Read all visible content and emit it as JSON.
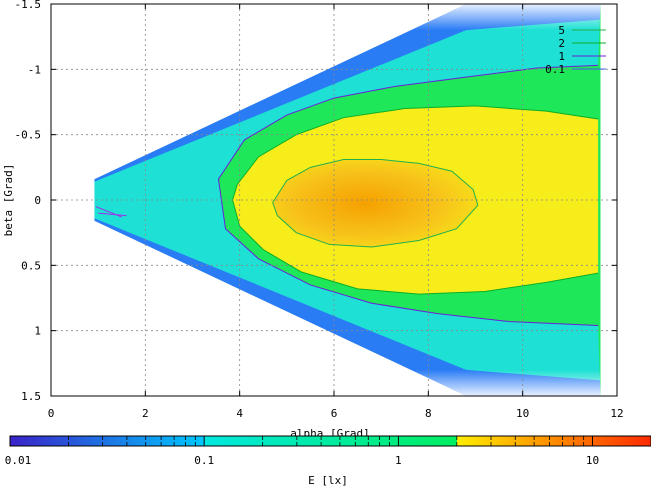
{
  "chart_data": {
    "type": "heatmap",
    "xlabel": "alpha [Grad]",
    "ylabel": "beta [Grad]",
    "xlim": [
      0,
      12
    ],
    "ylim": [
      -1.5,
      1.5
    ],
    "y_axis_inverted": true,
    "x_ticks": [
      0,
      2,
      4,
      6,
      8,
      10,
      12
    ],
    "y_ticks": [
      -1.5,
      -1,
      -0.5,
      0,
      0.5,
      1,
      1.5
    ],
    "x_tick_labels": [
      "0",
      "2",
      "4",
      "6",
      "8",
      "10",
      "12"
    ],
    "y_tick_labels": [
      "-1.5",
      "-1",
      "-0.5",
      "0",
      "0.5",
      "1",
      "1.5"
    ],
    "grid": true,
    "legend_position": "top-right",
    "colorbar": {
      "label": "E [lx]",
      "scale": "log",
      "range": [
        0.01,
        20
      ],
      "tick_values": [
        0.01,
        0.1,
        1,
        10
      ],
      "tick_labels": [
        "0.01",
        "0.1",
        "1",
        "10"
      ],
      "bands": [
        {
          "from": 0.01,
          "to": 0.1,
          "color": "#3a22c8",
          "to_color": "#00c8ff"
        },
        {
          "from": 0.1,
          "to": 2,
          "color": "#00e8e0",
          "to_color": "#00ee60"
        },
        {
          "from": 2,
          "to": 20,
          "color": "#ffee00",
          "to_color": "#ff2a00"
        }
      ]
    },
    "colors": {
      "wedge_outer": "#2a7cf5",
      "wedge_body": "#1ee0d4",
      "band_1_to_2": "#1ee85a",
      "core_2_to_5": "#f7ed1a",
      "core_above_5": "#f7b21a"
    },
    "contours": [
      {
        "level": 5,
        "label": "5",
        "color": "#22b04a",
        "points": [
          [
            4.7,
            0.02
          ],
          [
            5.0,
            -0.15
          ],
          [
            5.5,
            -0.25
          ],
          [
            6.2,
            -0.31
          ],
          [
            7.0,
            -0.31
          ],
          [
            7.8,
            -0.28
          ],
          [
            8.5,
            -0.22
          ],
          [
            8.95,
            -0.08
          ],
          [
            9.05,
            0.04
          ],
          [
            8.6,
            0.22
          ],
          [
            7.8,
            0.31
          ],
          [
            6.8,
            0.36
          ],
          [
            5.9,
            0.34
          ],
          [
            5.2,
            0.25
          ],
          [
            4.8,
            0.12
          ],
          [
            4.7,
            0.02
          ]
        ]
      },
      {
        "level": 2,
        "label": "2",
        "color": "#0cae25",
        "points": [
          [
            11.6,
            -0.62
          ],
          [
            10.5,
            -0.68
          ],
          [
            9.0,
            -0.72
          ],
          [
            7.5,
            -0.7
          ],
          [
            6.2,
            -0.63
          ],
          [
            5.2,
            -0.5
          ],
          [
            4.4,
            -0.33
          ],
          [
            3.95,
            -0.12
          ],
          [
            3.85,
            0.0
          ],
          [
            4.0,
            0.2
          ],
          [
            4.5,
            0.38
          ],
          [
            5.3,
            0.55
          ],
          [
            6.5,
            0.68
          ],
          [
            7.8,
            0.72
          ],
          [
            9.2,
            0.7
          ],
          [
            10.5,
            0.63
          ],
          [
            11.6,
            0.56
          ]
        ]
      },
      {
        "level": 1,
        "label": "1",
        "color": "#6a1fd8",
        "points": [
          [
            11.6,
            -1.03
          ],
          [
            10.3,
            -1.01
          ],
          [
            8.8,
            -0.94
          ],
          [
            7.3,
            -0.87
          ],
          [
            6.0,
            -0.78
          ],
          [
            5.0,
            -0.65
          ],
          [
            4.1,
            -0.46
          ],
          [
            3.55,
            -0.16
          ],
          [
            3.7,
            0.22
          ],
          [
            4.4,
            0.45
          ],
          [
            5.5,
            0.65
          ],
          [
            6.8,
            0.79
          ],
          [
            8.2,
            0.87
          ],
          [
            9.7,
            0.93
          ],
          [
            11.6,
            0.96
          ]
        ]
      },
      {
        "level": 0.1,
        "label": "0.1",
        "color": "#3a60e8",
        "points": []
      }
    ]
  }
}
